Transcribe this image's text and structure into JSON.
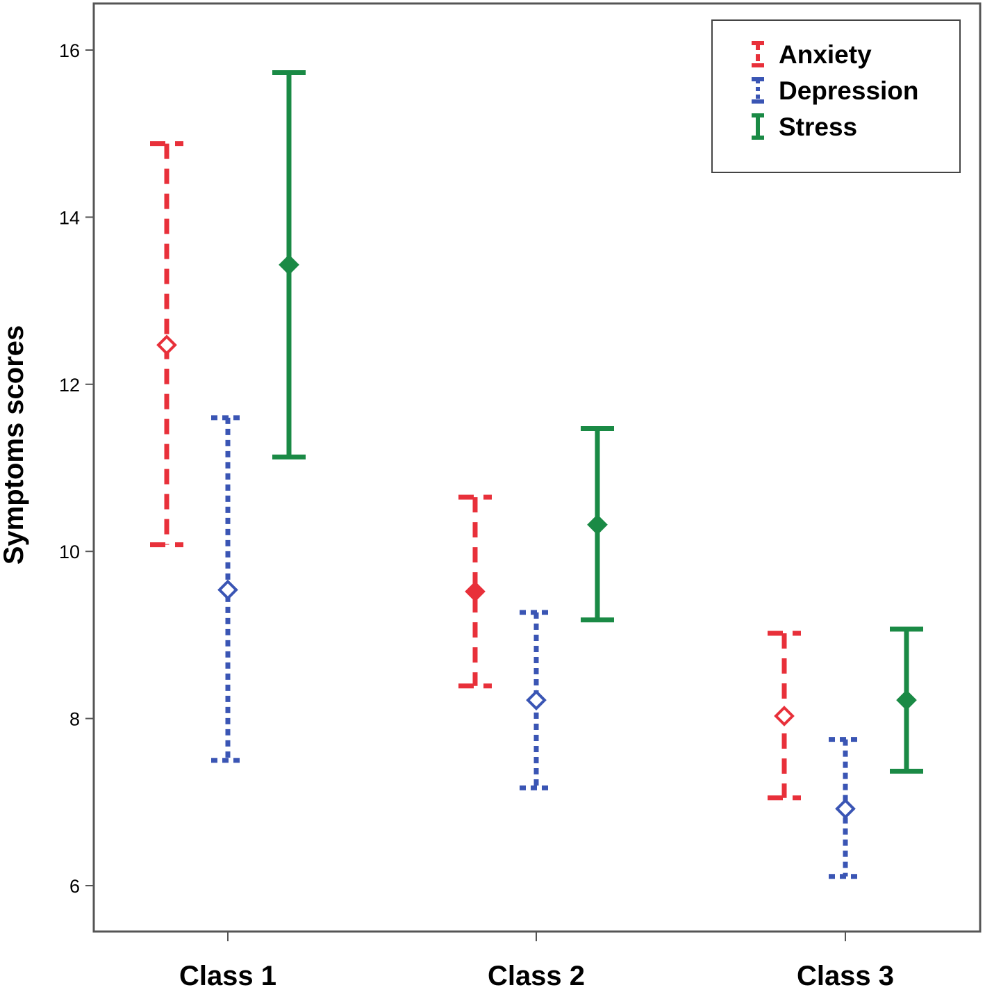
{
  "chart_data": {
    "type": "errorbar",
    "title": "",
    "xlabel": "",
    "ylabel": "Symptoms scores",
    "categories": [
      "Class 1",
      "Class 2",
      "Class 3"
    ],
    "ylim": [
      5.5,
      16.5
    ],
    "yticks": [
      6,
      8,
      10,
      12,
      14,
      16
    ],
    "legend_position": "top-right",
    "series": [
      {
        "name": "Anxiety",
        "color": "#e8303a",
        "line_style": "dashed",
        "marker_fill": [
          "open",
          "filled",
          "open"
        ],
        "mean": [
          12.47,
          9.52,
          8.03
        ],
        "lower": [
          10.08,
          8.39,
          7.05
        ],
        "upper": [
          14.88,
          10.65,
          9.02
        ]
      },
      {
        "name": "Depression",
        "color": "#3a55b4",
        "line_style": "dotted",
        "marker_fill": [
          "open",
          "open",
          "open"
        ],
        "mean": [
          9.54,
          8.22,
          6.92
        ],
        "lower": [
          7.5,
          7.17,
          6.11
        ],
        "upper": [
          11.6,
          9.27,
          7.75
        ]
      },
      {
        "name": "Stress",
        "color": "#1a8a45",
        "line_style": "solid",
        "marker_fill": [
          "filled",
          "filled",
          "filled"
        ],
        "mean": [
          13.43,
          10.32,
          8.22
        ],
        "lower": [
          11.13,
          9.18,
          7.37
        ],
        "upper": [
          15.73,
          11.47,
          9.07
        ]
      }
    ]
  }
}
